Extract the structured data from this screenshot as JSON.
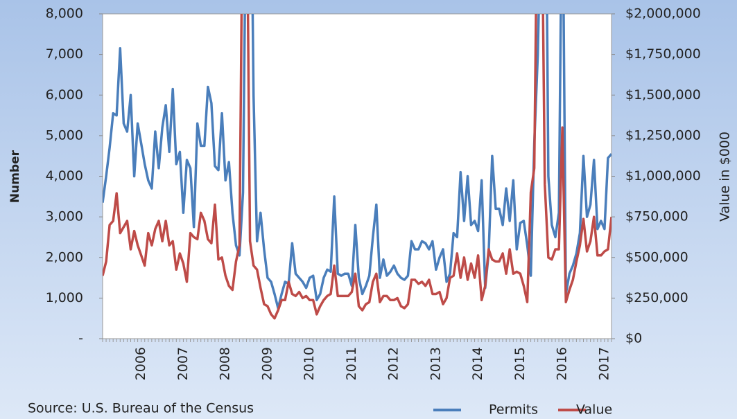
{
  "chart_data": {
    "type": "line",
    "source": "Source: U.S. Bureau of the Census",
    "ylabel": "Number",
    "y2label": "Value in $000",
    "categories": [
      null,
      null,
      null,
      null,
      null,
      null,
      null,
      null,
      null,
      null,
      null,
      "2006",
      null,
      null,
      null,
      null,
      null,
      null,
      null,
      null,
      null,
      null,
      null,
      "2007",
      null,
      null,
      null,
      null,
      null,
      null,
      null,
      null,
      null,
      null,
      null,
      "2008",
      null,
      null,
      null,
      null,
      null,
      null,
      null,
      null,
      null,
      null,
      null,
      "2009",
      null,
      null,
      null,
      null,
      null,
      null,
      null,
      null,
      null,
      null,
      null,
      "2010",
      null,
      null,
      null,
      null,
      null,
      null,
      null,
      null,
      null,
      null,
      null,
      "2011",
      null,
      null,
      null,
      null,
      null,
      null,
      null,
      null,
      null,
      null,
      null,
      "2012",
      null,
      null,
      null,
      null,
      null,
      null,
      null,
      null,
      null,
      null,
      null,
      "2013",
      null,
      null,
      null,
      null,
      null,
      null,
      null,
      null,
      null,
      null,
      null,
      "2014",
      null,
      null,
      null,
      null,
      null,
      null,
      null,
      null,
      null,
      null,
      null,
      "2015",
      null,
      null,
      null,
      null,
      null,
      null,
      null,
      null,
      null,
      null,
      null,
      "2016",
      null,
      null,
      null,
      null,
      null,
      null,
      null,
      null,
      null,
      null,
      null,
      "2017",
      null,
      null
    ],
    "series": [
      {
        "name": "Permits",
        "color": "#4a7ebb",
        "values": [
          3350,
          4000,
          4700,
          5550,
          5500,
          7150,
          5300,
          5100,
          6000,
          4000,
          5300,
          4800,
          4300,
          3900,
          3700,
          5100,
          4200,
          5200,
          5750,
          4600,
          6150,
          4300,
          4600,
          3100,
          4400,
          4200,
          2750,
          5300,
          4750,
          4750,
          6200,
          5800,
          4250,
          4150,
          5550,
          3900,
          4350,
          3100,
          2300,
          2050,
          3600,
          12000,
          14000,
          6000,
          2400,
          3100,
          2200,
          1500,
          1400,
          1100,
          750,
          1100,
          1400,
          1350,
          2350,
          1600,
          1500,
          1400,
          1250,
          1500,
          1550,
          950,
          1100,
          1500,
          1700,
          1650,
          3500,
          1600,
          1550,
          1600,
          1600,
          1300,
          2800,
          1500,
          1100,
          1300,
          1550,
          2500,
          3300,
          1500,
          1950,
          1550,
          1650,
          1800,
          1600,
          1500,
          1450,
          1550,
          2400,
          2200,
          2200,
          2400,
          2350,
          2200,
          2400,
          1700,
          2000,
          2200,
          1400,
          1600,
          2600,
          2500,
          4100,
          2900,
          4000,
          2800,
          2900,
          2650,
          3900,
          1250,
          2100,
          4500,
          3200,
          3200,
          2800,
          3700,
          2900,
          3900,
          2200,
          2850,
          2900,
          2300,
          1550,
          4800,
          7000,
          11000,
          15000,
          4000,
          2800,
          2500,
          3100,
          12000,
          1100,
          1600,
          1800,
          2100,
          2600,
          4500,
          3000,
          3300,
          4400,
          2700,
          2900,
          2700,
          4450,
          4550
        ]
      },
      {
        "name": "Value",
        "color": "#be4b48",
        "axis": "y2",
        "values": [
          387500,
          475000,
          700000,
          725000,
          895000,
          650000,
          687500,
          725000,
          550000,
          662500,
          575000,
          512500,
          450000,
          650000,
          575000,
          675000,
          725000,
          600000,
          725000,
          575000,
          600000,
          425000,
          525000,
          462500,
          350000,
          650000,
          625000,
          612500,
          775000,
          725000,
          612500,
          587500,
          825000,
          487500,
          500000,
          387500,
          325000,
          300000,
          475000,
          575000,
          3000000,
          3000000,
          600000,
          450000,
          425000,
          312500,
          212500,
          200000,
          150000,
          125000,
          175000,
          237500,
          237500,
          350000,
          275000,
          262500,
          287500,
          250000,
          262500,
          237500,
          237500,
          150000,
          200000,
          237500,
          262500,
          275000,
          450000,
          262500,
          262500,
          262500,
          262500,
          287500,
          400000,
          200000,
          175000,
          212500,
          225000,
          350000,
          400000,
          225000,
          262500,
          262500,
          237500,
          237500,
          250000,
          200000,
          187500,
          212500,
          362500,
          362500,
          337500,
          350000,
          325000,
          362500,
          275000,
          275000,
          287500,
          212500,
          250000,
          375000,
          387500,
          525000,
          375000,
          500000,
          362500,
          462500,
          375000,
          512500,
          237500,
          325000,
          550000,
          487500,
          475000,
          475000,
          525000,
          400000,
          550000,
          400000,
          412500,
          400000,
          325000,
          225000,
          900000,
          1050000,
          3000000,
          3000000,
          950000,
          500000,
          487500,
          550000,
          550000,
          1300000,
          225000,
          300000,
          362500,
          475000,
          575000,
          737500,
          537500,
          600000,
          750000,
          512500,
          512500,
          537500,
          550000,
          750000
        ]
      }
    ],
    "ylim": [
      0,
      8000
    ],
    "yticks": [
      {
        "value": 0,
        "label": "-"
      },
      {
        "value": 1000,
        "label": "1,000"
      },
      {
        "value": 2000,
        "label": "2,000"
      },
      {
        "value": 3000,
        "label": "3,000"
      },
      {
        "value": 4000,
        "label": "4,000"
      },
      {
        "value": 5000,
        "label": "5,000"
      },
      {
        "value": 6000,
        "label": "6,000"
      },
      {
        "value": 7000,
        "label": "7,000"
      },
      {
        "value": 8000,
        "label": "8,000"
      }
    ],
    "y2lim": [
      0,
      2000000
    ],
    "y2ticks": [
      {
        "value": 0,
        "label": "$0"
      },
      {
        "value": 250000,
        "label": "$250,000"
      },
      {
        "value": 500000,
        "label": "$500,000"
      },
      {
        "value": 750000,
        "label": "$750,000"
      },
      {
        "value": 1000000,
        "label": "$1,000,000"
      },
      {
        "value": 1250000,
        "label": "$1,250,000"
      },
      {
        "value": 1500000,
        "label": "$1,500,000"
      },
      {
        "value": 1750000,
        "label": "$1,750,000"
      },
      {
        "value": 2000000,
        "label": "$2,000,000"
      }
    ],
    "grid": false,
    "legend": "bottom-right"
  }
}
